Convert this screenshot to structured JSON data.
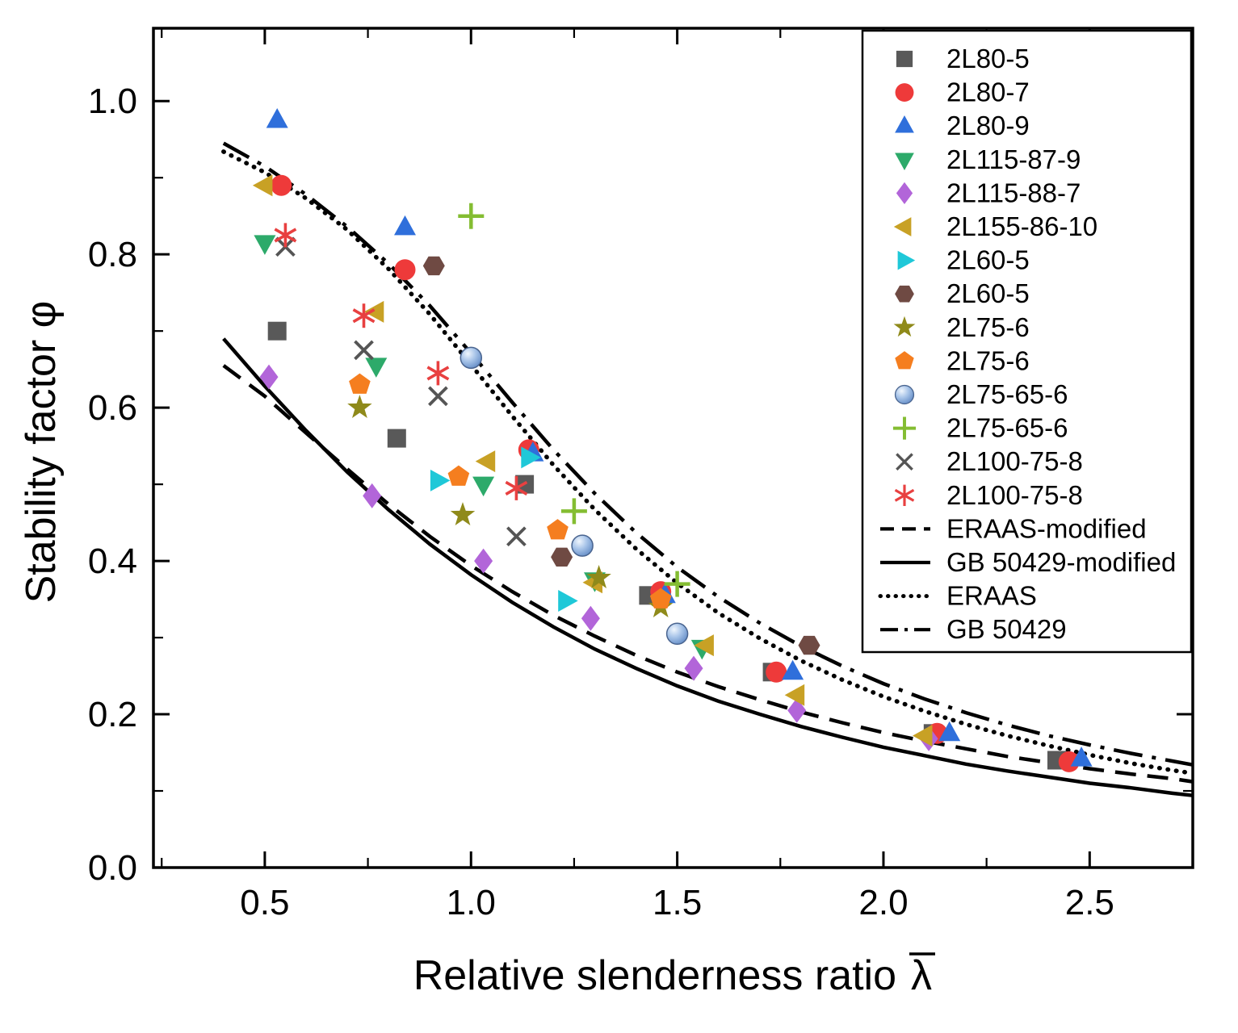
{
  "figure": {
    "background": "#ffffff",
    "frame_color": "#000000"
  },
  "chart_data": {
    "type": "scatter",
    "title": "",
    "xlabel": "Relative slenderness ratio λ̄",
    "xlabel_text": "Relative slenderness ratio",
    "xlabel_symbol": "λ",
    "xlabel_symbol_overbar": true,
    "ylabel": "Stability factor φ",
    "ylabel_text": "Stability factor",
    "ylabel_symbol": "φ",
    "xlim": [
      0.23,
      2.75
    ],
    "ylim": [
      0.0,
      1.095
    ],
    "x_tick_values": [
      0.5,
      1.0,
      1.5,
      2.0,
      2.5
    ],
    "x_ticks": [
      "0.5",
      "1.0",
      "1.5",
      "2.0",
      "2.5"
    ],
    "x_minor_step": 0.25,
    "y_tick_values": [
      0.0,
      0.2,
      0.4,
      0.6,
      0.8,
      1.0
    ],
    "y_ticks": [
      "0.0",
      "0.2",
      "0.4",
      "0.6",
      "0.8",
      "1.0"
    ],
    "y_minor_step": 0.1,
    "grid": false,
    "legend_position": "top-right-inside",
    "series": [
      {
        "name": "2L80-5",
        "marker": "square",
        "color": "#595959",
        "points": [
          [
            0.53,
            0.7
          ],
          [
            0.82,
            0.56
          ],
          [
            1.13,
            0.5
          ],
          [
            1.43,
            0.355
          ],
          [
            1.73,
            0.255
          ],
          [
            2.12,
            0.175
          ],
          [
            2.42,
            0.14
          ]
        ]
      },
      {
        "name": "2L80-7",
        "marker": "circle",
        "color": "#ee3a3a",
        "points": [
          [
            0.54,
            0.89
          ],
          [
            0.84,
            0.78
          ],
          [
            1.14,
            0.545
          ],
          [
            1.46,
            0.36
          ],
          [
            1.74,
            0.255
          ],
          [
            2.13,
            0.175
          ],
          [
            2.45,
            0.138
          ]
        ]
      },
      {
        "name": "2L80-9",
        "marker": "triangle-up",
        "color": "#2f6fdb",
        "points": [
          [
            0.53,
            0.975
          ],
          [
            0.84,
            0.835
          ],
          [
            1.15,
            0.54
          ],
          [
            1.47,
            0.355
          ],
          [
            1.78,
            0.255
          ],
          [
            2.16,
            0.175
          ],
          [
            2.48,
            0.142
          ]
        ]
      },
      {
        "name": "2L115-87-9",
        "marker": "triangle-down",
        "color": "#2daa6a",
        "points": [
          [
            0.5,
            0.815
          ],
          [
            0.77,
            0.655
          ],
          [
            1.03,
            0.5
          ],
          [
            1.3,
            0.375
          ],
          [
            1.56,
            0.287
          ]
        ]
      },
      {
        "name": "2L115-88-7",
        "marker": "diamond",
        "color": "#b265d9",
        "points": [
          [
            0.51,
            0.64
          ],
          [
            0.76,
            0.485
          ],
          [
            1.03,
            0.4
          ],
          [
            1.29,
            0.325
          ],
          [
            1.54,
            0.26
          ],
          [
            1.79,
            0.205
          ],
          [
            2.11,
            0.168
          ]
        ]
      },
      {
        "name": "2L155-86-10",
        "marker": "triangle-left",
        "color": "#c8a125",
        "points": [
          [
            0.5,
            0.89
          ],
          [
            0.77,
            0.725
          ],
          [
            1.04,
            0.53
          ],
          [
            1.3,
            0.372
          ],
          [
            1.57,
            0.29
          ],
          [
            1.79,
            0.225
          ],
          [
            2.1,
            0.172
          ]
        ]
      },
      {
        "name": "2L60-5",
        "marker": "triangle-right",
        "color": "#1fc8d8",
        "points": [
          [
            0.92,
            0.505
          ],
          [
            1.14,
            0.535
          ],
          [
            1.23,
            0.348
          ]
        ]
      },
      {
        "name": "2L60-5",
        "marker": "hexagon",
        "color": "#6f4a43",
        "points": [
          [
            0.91,
            0.785
          ],
          [
            1.22,
            0.405
          ],
          [
            1.82,
            0.29
          ]
        ]
      },
      {
        "name": "2L75-6",
        "marker": "star",
        "color": "#8f8a1a",
        "points": [
          [
            0.73,
            0.6
          ],
          [
            0.98,
            0.46
          ],
          [
            1.31,
            0.378
          ],
          [
            1.46,
            0.34
          ]
        ]
      },
      {
        "name": "2L75-6",
        "marker": "pentagon",
        "color": "#f57e1f",
        "points": [
          [
            0.73,
            0.63
          ],
          [
            0.97,
            0.51
          ],
          [
            1.21,
            0.44
          ],
          [
            1.46,
            0.35
          ]
        ]
      },
      {
        "name": "2L75-65-6",
        "marker": "sphere",
        "color": "#7da7d8",
        "points": [
          [
            1.0,
            0.665
          ],
          [
            1.27,
            0.42
          ],
          [
            1.5,
            0.305
          ]
        ]
      },
      {
        "name": "2L75-65-6",
        "marker": "plus",
        "color": "#84bd32",
        "points": [
          [
            1.0,
            0.85
          ],
          [
            1.25,
            0.465
          ],
          [
            1.5,
            0.37
          ]
        ]
      },
      {
        "name": "2L100-75-8",
        "marker": "x",
        "color": "#555555",
        "points": [
          [
            0.55,
            0.81
          ],
          [
            0.74,
            0.675
          ],
          [
            0.92,
            0.615
          ],
          [
            1.11,
            0.432
          ]
        ]
      },
      {
        "name": "2L100-75-8",
        "marker": "asterisk",
        "color": "#e84040",
        "points": [
          [
            0.55,
            0.825
          ],
          [
            0.74,
            0.72
          ],
          [
            0.92,
            0.645
          ],
          [
            1.11,
            0.495
          ]
        ]
      }
    ],
    "curves": [
      {
        "name": "ERAAS-modified",
        "style": "dashed",
        "color": "#000000",
        "x": [
          0.4,
          0.5,
          0.6,
          0.7,
          0.8,
          0.9,
          1.0,
          1.1,
          1.2,
          1.3,
          1.4,
          1.5,
          1.6,
          1.7,
          1.8,
          1.9,
          2.0,
          2.1,
          2.2,
          2.3,
          2.4,
          2.5,
          2.6,
          2.7,
          2.75
        ],
        "y": [
          0.655,
          0.615,
          0.567,
          0.52,
          0.474,
          0.432,
          0.394,
          0.36,
          0.329,
          0.302,
          0.277,
          0.255,
          0.236,
          0.219,
          0.203,
          0.189,
          0.176,
          0.165,
          0.155,
          0.145,
          0.137,
          0.129,
          0.122,
          0.116,
          0.112
        ]
      },
      {
        "name": "GB 50429-modified",
        "style": "solid",
        "color": "#000000",
        "x": [
          0.4,
          0.5,
          0.6,
          0.7,
          0.8,
          0.9,
          1.0,
          1.1,
          1.2,
          1.3,
          1.4,
          1.5,
          1.6,
          1.7,
          1.8,
          1.9,
          2.0,
          2.1,
          2.2,
          2.3,
          2.4,
          2.5,
          2.6,
          2.7,
          2.75
        ],
        "y": [
          0.69,
          0.628,
          0.57,
          0.516,
          0.467,
          0.422,
          0.382,
          0.346,
          0.314,
          0.285,
          0.26,
          0.237,
          0.217,
          0.2,
          0.184,
          0.17,
          0.157,
          0.146,
          0.135,
          0.126,
          0.118,
          0.11,
          0.104,
          0.097,
          0.094
        ]
      },
      {
        "name": "ERAAS",
        "style": "dotted",
        "color": "#000000",
        "x": [
          0.4,
          0.5,
          0.6,
          0.7,
          0.8,
          0.9,
          1.0,
          1.1,
          1.2,
          1.3,
          1.4,
          1.5,
          1.6,
          1.7,
          1.8,
          1.9,
          2.0,
          2.1,
          2.2,
          2.3,
          2.4,
          2.5,
          2.6,
          2.7,
          2.75
        ],
        "y": [
          0.934,
          0.907,
          0.873,
          0.832,
          0.781,
          0.722,
          0.656,
          0.589,
          0.525,
          0.467,
          0.416,
          0.371,
          0.332,
          0.299,
          0.27,
          0.245,
          0.223,
          0.204,
          0.187,
          0.172,
          0.159,
          0.147,
          0.136,
          0.127,
          0.123
        ]
      },
      {
        "name": "GB 50429",
        "style": "dashdot",
        "color": "#000000",
        "x": [
          0.4,
          0.5,
          0.6,
          0.7,
          0.8,
          0.9,
          1.0,
          1.1,
          1.2,
          1.3,
          1.4,
          1.5,
          1.6,
          1.7,
          1.8,
          1.9,
          2.0,
          2.1,
          2.2,
          2.3,
          2.4,
          2.5,
          2.6,
          2.7,
          2.75
        ],
        "y": [
          0.945,
          0.915,
          0.878,
          0.836,
          0.788,
          0.733,
          0.671,
          0.607,
          0.545,
          0.488,
          0.437,
          0.392,
          0.353,
          0.319,
          0.289,
          0.263,
          0.24,
          0.22,
          0.202,
          0.186,
          0.172,
          0.16,
          0.149,
          0.139,
          0.134
        ]
      }
    ]
  }
}
